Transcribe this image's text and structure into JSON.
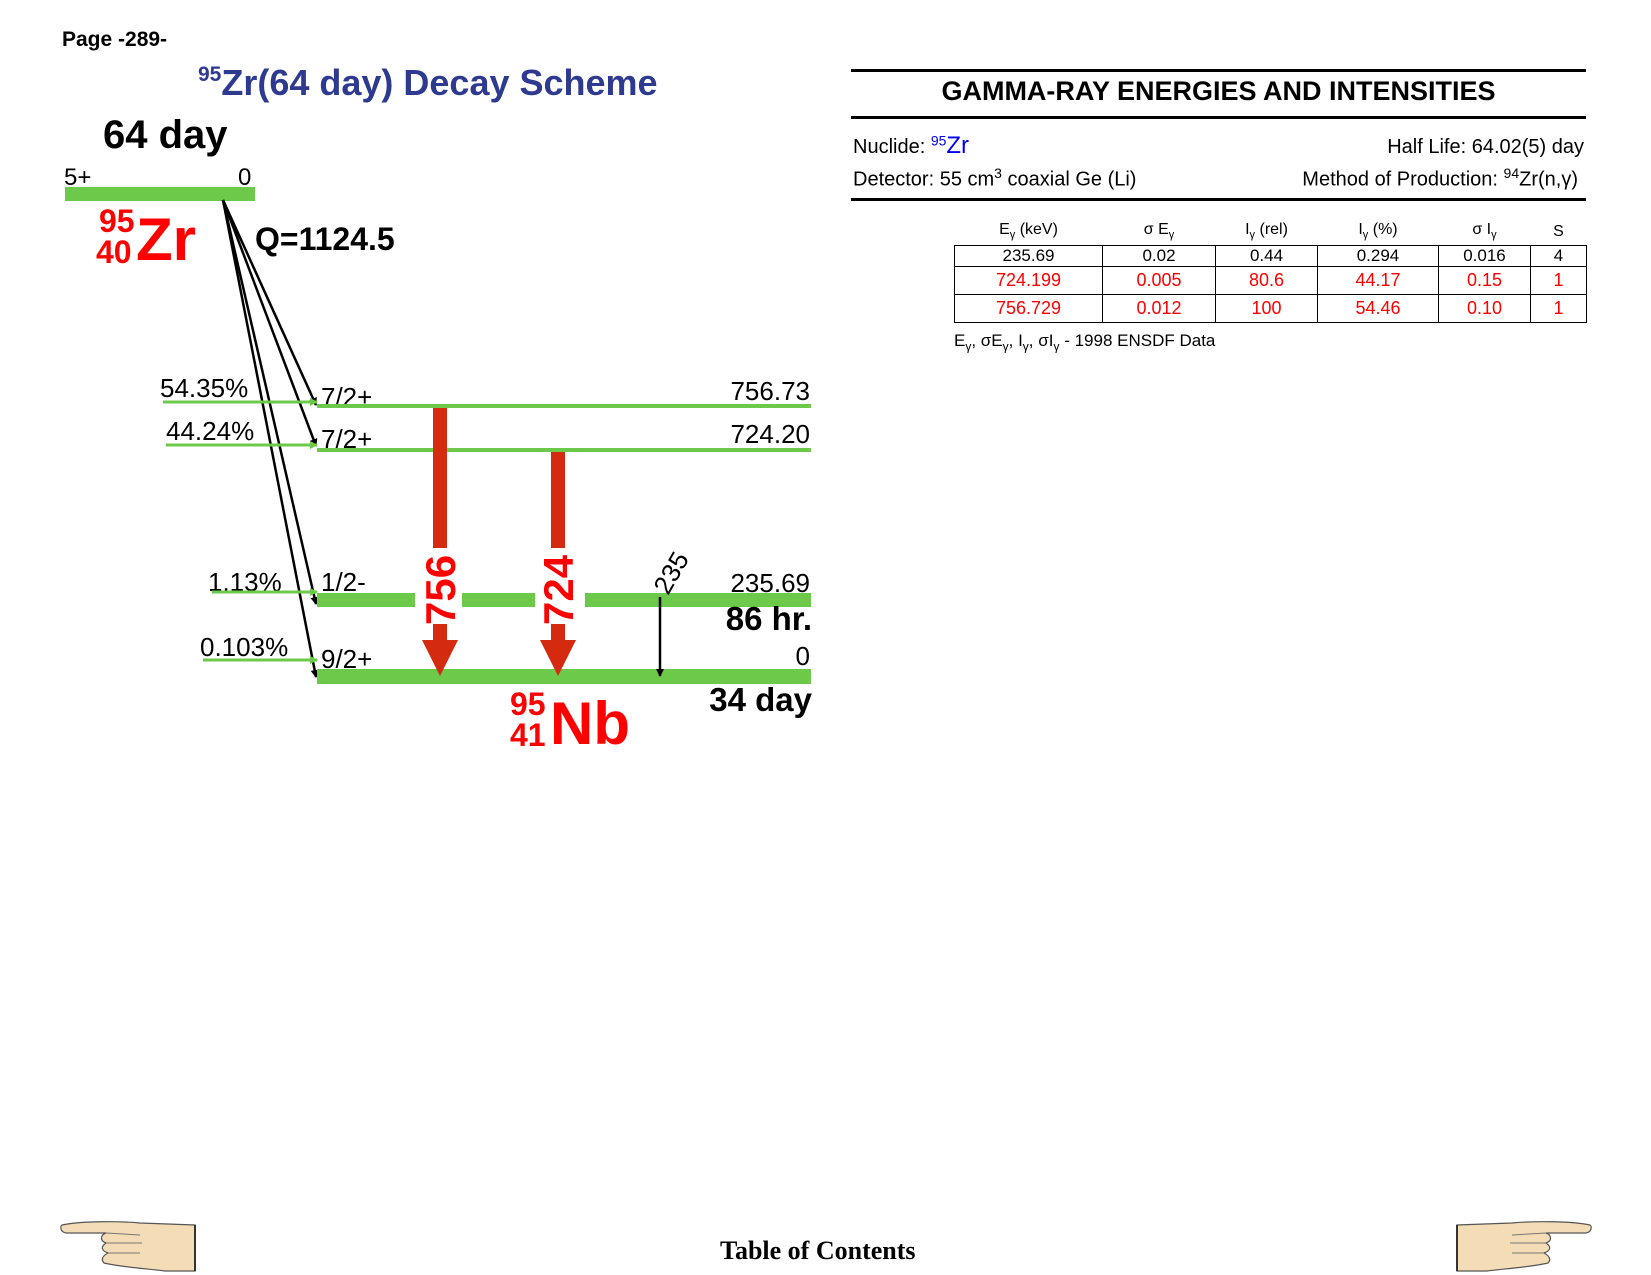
{
  "page": {
    "label": "Page -289-"
  },
  "title": {
    "mass_sup": "95",
    "text": "Zr(64 day) Decay Scheme"
  },
  "parent": {
    "halflife": "64 day",
    "spin": "5+",
    "energy": "0",
    "mass": "95",
    "z": "40",
    "symbol": "Zr",
    "q_value": "Q=1124.5"
  },
  "daughter": {
    "mass": "95",
    "z": "41",
    "symbol": "Nb"
  },
  "levels": [
    {
      "branch": "54.35%",
      "spin": "7/2+",
      "energy": "756.73",
      "halflife": ""
    },
    {
      "branch": "44.24%",
      "spin": "7/2+",
      "energy": "724.20",
      "halflife": ""
    },
    {
      "branch": "1.13%",
      "spin": "1/2-",
      "energy": "235.69",
      "halflife": "86 hr."
    },
    {
      "branch": "0.103%",
      "spin": "9/2+",
      "energy": "0",
      "halflife": "34 day"
    }
  ],
  "gammas": [
    {
      "label": "756"
    },
    {
      "label": "724"
    },
    {
      "label": "235"
    }
  ],
  "table_panel": {
    "title": "GAMMA-RAY ENERGIES AND INTENSITIES",
    "nuclide_label": "Nuclide: ",
    "nuclide_mass": "95",
    "nuclide_symbol": "Zr",
    "half_life": "Half Life: 64.02(5) day",
    "detector_a": "Detector: 55 cm",
    "detector_sup": "3",
    "detector_b": " coaxial Ge (Li)",
    "production_a": "Method of Production: ",
    "production_sup": "94",
    "production_b": "Zr(n,γ)",
    "headers": [
      "(keV)",
      "σ E",
      "(rel)",
      "(%)",
      "σ I",
      "S"
    ],
    "rows": [
      [
        "235.69",
        "0.02",
        "0.44",
        "0.294",
        "0.016",
        "4"
      ],
      [
        "724.199",
        "0.005",
        "80.6",
        "44.17",
        "0.15",
        "1"
      ],
      [
        "756.729",
        "0.012",
        "100",
        "54.46",
        "0.10",
        "1"
      ]
    ],
    "footnote": "1998 ENSDF Data"
  },
  "colors": {
    "level": "#6cc94a",
    "gamma": "#d42a10",
    "nuclide": "#ff0000",
    "title": "#2e3a8f",
    "arrow": "#000000"
  },
  "footer": {
    "toc": "Table of Contents",
    "left_icon": "pointing-hand-left-icon",
    "right_icon": "pointing-hand-right-icon"
  }
}
